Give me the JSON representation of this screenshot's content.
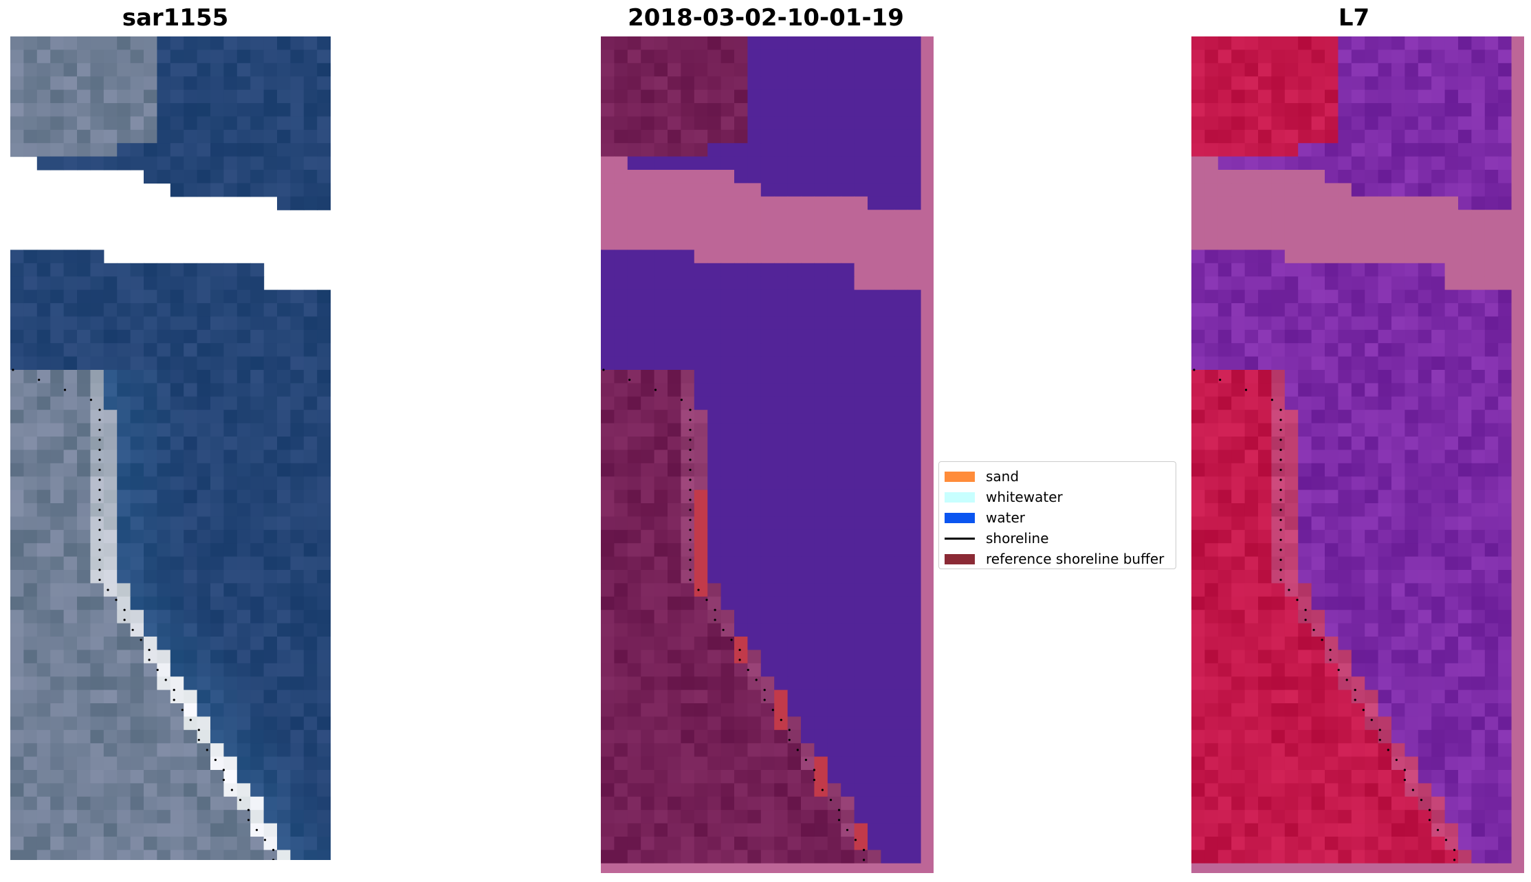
{
  "panels": [
    {
      "id": "rgb",
      "title": "sar1155"
    },
    {
      "id": "class",
      "title": "2018-03-02-10-01-19"
    },
    {
      "id": "index",
      "title": "L7"
    }
  ],
  "legend": {
    "items": [
      {
        "label": "sand",
        "color": "#ff8c3a",
        "kind": "patch"
      },
      {
        "label": "whitewater",
        "color": "#c8ffff",
        "kind": "patch"
      },
      {
        "label": "water",
        "color": "#0a55f0",
        "kind": "patch"
      },
      {
        "label": "shoreline",
        "color": "#000000",
        "kind": "line"
      },
      {
        "label": "reference shoreline buffer",
        "color": "#8b2a35",
        "kind": "patch"
      }
    ]
  },
  "colors": {
    "rgb_water_dark": "#1f3a6b",
    "rgb_water_mid": "#2f5f90",
    "rgb_land": "#6f7e95",
    "rgb_surf": "#f2f4f7",
    "class_land": "#742056",
    "class_water": "#532498",
    "class_nodata": "#bd6697",
    "class_buffer": "#c23a4a",
    "index_land": "#c3174a",
    "index_water": "#7b2aa6",
    "index_nodata": "#bd6697",
    "shoreline_dots": "#000000"
  }
}
